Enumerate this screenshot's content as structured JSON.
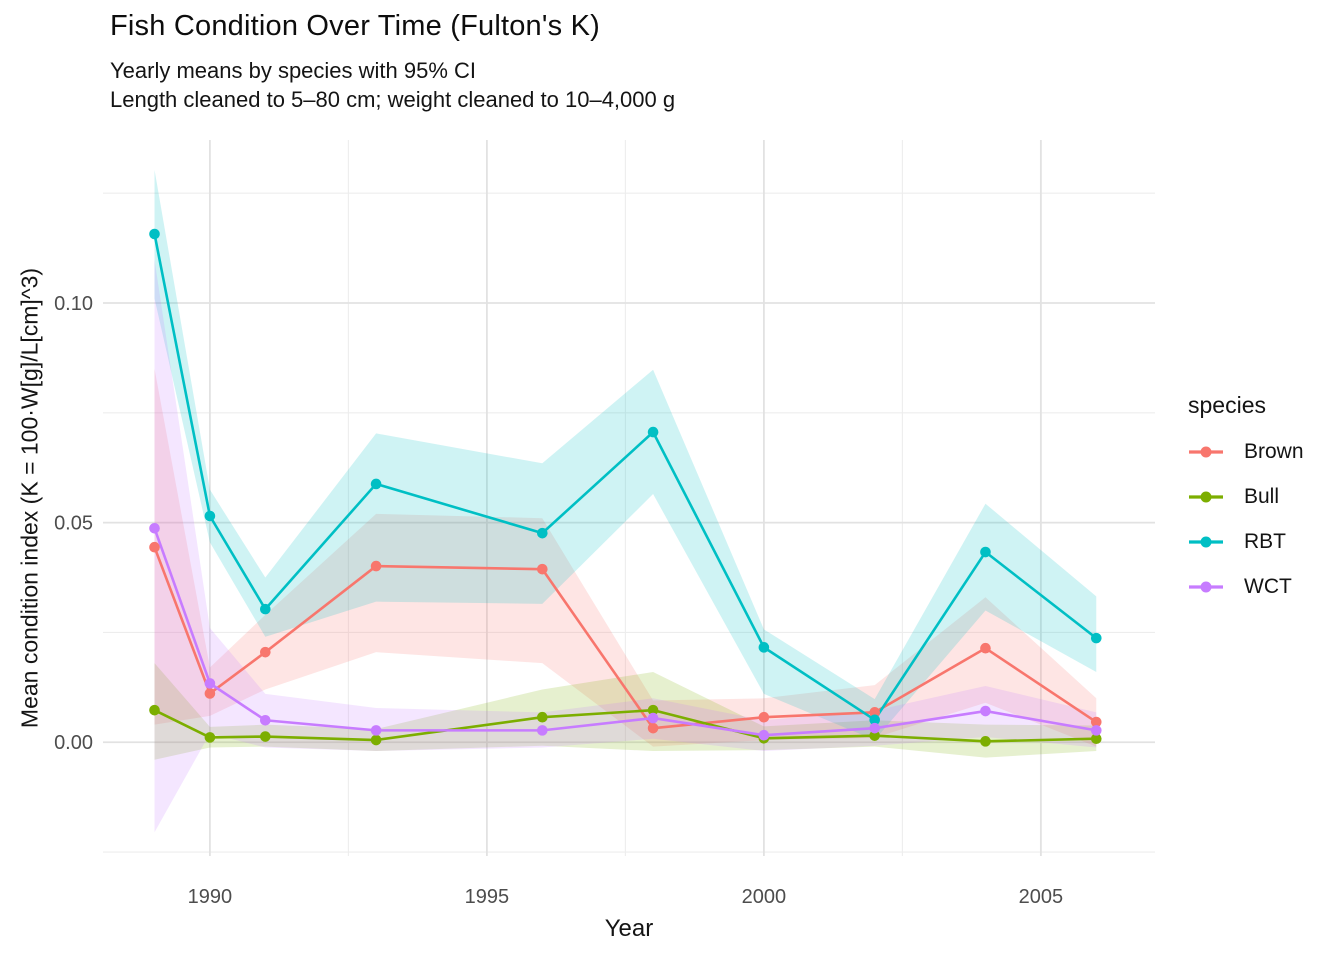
{
  "chart_data": {
    "type": "line",
    "title": "Fish Condition Over Time (Fulton's K)",
    "subtitle1": "Yearly means by species with 95% CI",
    "subtitle2": "Length cleaned to 5–80 cm; weight cleaned to 10–4,000 g",
    "xlabel": "Year",
    "ylabel": "Mean condition index (K = 100·W[g]/L[cm]^3)",
    "legend_title": "species",
    "legend_position": "right",
    "grid": true,
    "ci_note": "shaded ribbons are 95% confidence intervals",
    "x": [
      1989,
      1990,
      1991,
      1993,
      1996,
      1998,
      2000,
      2002,
      2004,
      2006
    ],
    "x_ticks": [
      1990,
      1995,
      2000,
      2005
    ],
    "x_minor": [
      1992.5,
      1997.5,
      2002.5
    ],
    "y_ticks": [
      0,
      0.05,
      0.1
    ],
    "y_tick_labels": [
      "0.00",
      "0.05",
      "0.10"
    ],
    "y_minor": [
      -0.025,
      0.025,
      0.075,
      0.125
    ],
    "xlim": [
      1988.07,
      2007.06
    ],
    "ylim": [
      -0.0259,
      0.1371
    ],
    "series": [
      {
        "name": "Brown",
        "color": "#F8766D",
        "values": [
          0.0444,
          0.0111,
          0.0205,
          0.0401,
          0.0394,
          0.0032,
          0.0057,
          0.0068,
          0.0214,
          0.0046
        ],
        "ci_lo": [
          0.004,
          0.006,
          0.012,
          0.0205,
          0.018,
          -0.001,
          0.0005,
          0.001,
          0.009,
          -0.001
        ],
        "ci_hi": [
          0.085,
          0.017,
          0.029,
          0.052,
          0.051,
          0.0095,
          0.01,
          0.013,
          0.033,
          0.01
        ]
      },
      {
        "name": "Bull",
        "color": "#7CAE00",
        "values": [
          0.0073,
          0.0011,
          0.0013,
          0.0005,
          0.0057,
          0.0073,
          0.0009,
          0.0015,
          0.0002,
          0.0008
        ],
        "ci_lo": [
          -0.004,
          -0.0012,
          -0.001,
          -0.002,
          -0.0008,
          -0.002,
          -0.0018,
          -0.001,
          -0.0035,
          -0.002
        ],
        "ci_hi": [
          0.018,
          0.0035,
          0.004,
          0.003,
          0.012,
          0.016,
          0.0036,
          0.005,
          0.004,
          0.0038
        ]
      },
      {
        "name": "RBT",
        "color": "#00BFC4",
        "values": [
          0.1157,
          0.0515,
          0.0303,
          0.0588,
          0.0476,
          0.0706,
          0.0216,
          0.0051,
          0.0433,
          0.0237
        ],
        "ci_lo": [
          0.101,
          0.0455,
          0.024,
          0.032,
          0.0315,
          0.0565,
          0.011,
          0.0005,
          0.03,
          0.016
        ],
        "ci_hi": [
          0.1303,
          0.0575,
          0.0375,
          0.0703,
          0.0635,
          0.0848,
          0.0257,
          0.0098,
          0.0543,
          0.0332
        ]
      },
      {
        "name": "WCT",
        "color": "#C77CFF",
        "values": [
          0.0487,
          0.0134,
          0.005,
          0.0027,
          0.0027,
          0.0055,
          0.0016,
          0.0032,
          0.0071,
          0.0027
        ],
        "ci_lo": [
          -0.0205,
          0.002,
          -0.0012,
          -0.002,
          -0.0012,
          0.0008,
          -0.002,
          -0.0008,
          0.0012,
          -0.0012
        ],
        "ci_hi": [
          0.1098,
          0.026,
          0.011,
          0.0078,
          0.0068,
          0.01,
          0.005,
          0.0072,
          0.0128,
          0.0068
        ]
      }
    ]
  }
}
